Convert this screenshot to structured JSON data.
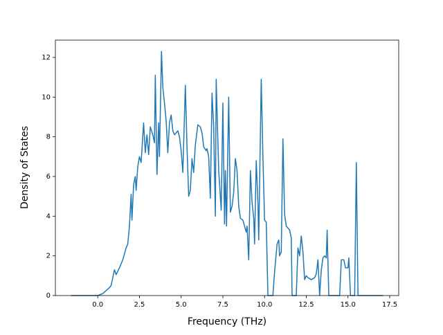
{
  "chart_data": {
    "type": "line",
    "xlabel": "Frequency (THz)",
    "ylabel": "Density of States",
    "x": [
      -1.6,
      0,
      0.3,
      0.7,
      0.8,
      0.95,
      1.0,
      1.1,
      1.3,
      1.5,
      1.7,
      1.8,
      1.9,
      2.0,
      2.05,
      2.15,
      2.25,
      2.3,
      2.4,
      2.5,
      2.6,
      2.75,
      2.85,
      2.95,
      3.05,
      3.15,
      3.3,
      3.4,
      3.45,
      3.55,
      3.65,
      3.7,
      3.82,
      3.9,
      4.0,
      4.1,
      4.2,
      4.3,
      4.4,
      4.5,
      4.6,
      4.8,
      4.9,
      5.0,
      5.1,
      5.25,
      5.35,
      5.45,
      5.55,
      5.65,
      5.75,
      5.85,
      6.0,
      6.15,
      6.25,
      6.35,
      6.5,
      6.55,
      6.65,
      6.75,
      6.85,
      6.95,
      7.05,
      7.1,
      7.25,
      7.4,
      7.5,
      7.6,
      7.65,
      7.72,
      7.85,
      7.95,
      8.05,
      8.15,
      8.25,
      8.35,
      8.45,
      8.55,
      8.7,
      8.8,
      8.9,
      8.95,
      9.05,
      9.15,
      9.25,
      9.35,
      9.4,
      9.5,
      9.6,
      9.65,
      9.8,
      9.9,
      10.0,
      10.1,
      10.2,
      10.5,
      10.6,
      10.75,
      10.85,
      10.9,
      11.0,
      11.1,
      11.2,
      11.3,
      11.5,
      11.6,
      11.65,
      11.9,
      12.0,
      12.1,
      12.2,
      12.3,
      12.4,
      12.5,
      12.6,
      12.8,
      13.0,
      13.1,
      13.2,
      13.3,
      13.4,
      13.5,
      13.6,
      13.7,
      13.75,
      13.85,
      14.5,
      14.6,
      14.75,
      14.85,
      15.0,
      15.05,
      15.15,
      15.4,
      15.5,
      15.6,
      17.1
    ],
    "series": [
      {
        "color": "#1f77b4",
        "values": [
          0,
          0,
          0.1,
          0.4,
          0.5,
          1.1,
          1.3,
          1.05,
          1.4,
          1.8,
          2.4,
          2.6,
          3.5,
          5.1,
          3.8,
          5.6,
          6.0,
          5.3,
          6.5,
          7.0,
          6.7,
          8.7,
          7.2,
          8.1,
          7.1,
          8.5,
          8.1,
          7.7,
          11.1,
          6.1,
          8.7,
          7.0,
          12.3,
          10.5,
          9.7,
          8.8,
          7.2,
          8.7,
          9.1,
          8.3,
          8.1,
          8.3,
          8.0,
          7.3,
          6.2,
          10.6,
          7.5,
          5.0,
          5.3,
          6.9,
          6.2,
          7.6,
          8.6,
          8.5,
          8.2,
          7.5,
          7.3,
          7.4,
          7.0,
          4.9,
          10.2,
          8.5,
          4.0,
          10.9,
          6.3,
          4.3,
          9.7,
          3.6,
          6.3,
          3.5,
          10.0,
          4.2,
          4.5,
          5.2,
          6.9,
          6.3,
          4.5,
          3.9,
          3.8,
          3.5,
          3.2,
          3.5,
          1.8,
          6.3,
          4.7,
          3.9,
          2.6,
          6.8,
          4.7,
          2.8,
          10.9,
          7.0,
          3.8,
          3.7,
          0,
          0,
          1.2,
          2.6,
          2.8,
          2.0,
          2.2,
          7.9,
          4.1,
          3.5,
          3.3,
          2.9,
          0,
          0,
          2.4,
          2.0,
          3.0,
          2.2,
          0.8,
          1.0,
          0.9,
          0.8,
          0.9,
          1.1,
          1.8,
          0,
          1.3,
          1.9,
          2.0,
          1.9,
          3.3,
          0,
          0,
          1.8,
          1.8,
          1.4,
          1.4,
          1.9,
          0,
          0,
          6.7,
          0,
          0
        ]
      }
    ],
    "xlim": [
      -2.54,
      18.04
    ],
    "ylim": [
      0,
      12.87
    ],
    "xticks": [
      {
        "value": 0,
        "label": "0.0"
      },
      2.5,
      {
        "value": 5,
        "label": "5.0"
      },
      7.5,
      {
        "value": 10,
        "label": "10.0"
      },
      12.5,
      {
        "value": 15,
        "label": "15.0"
      },
      17.5
    ],
    "yticks": [
      0,
      2,
      4,
      6,
      8,
      10,
      12
    ]
  }
}
